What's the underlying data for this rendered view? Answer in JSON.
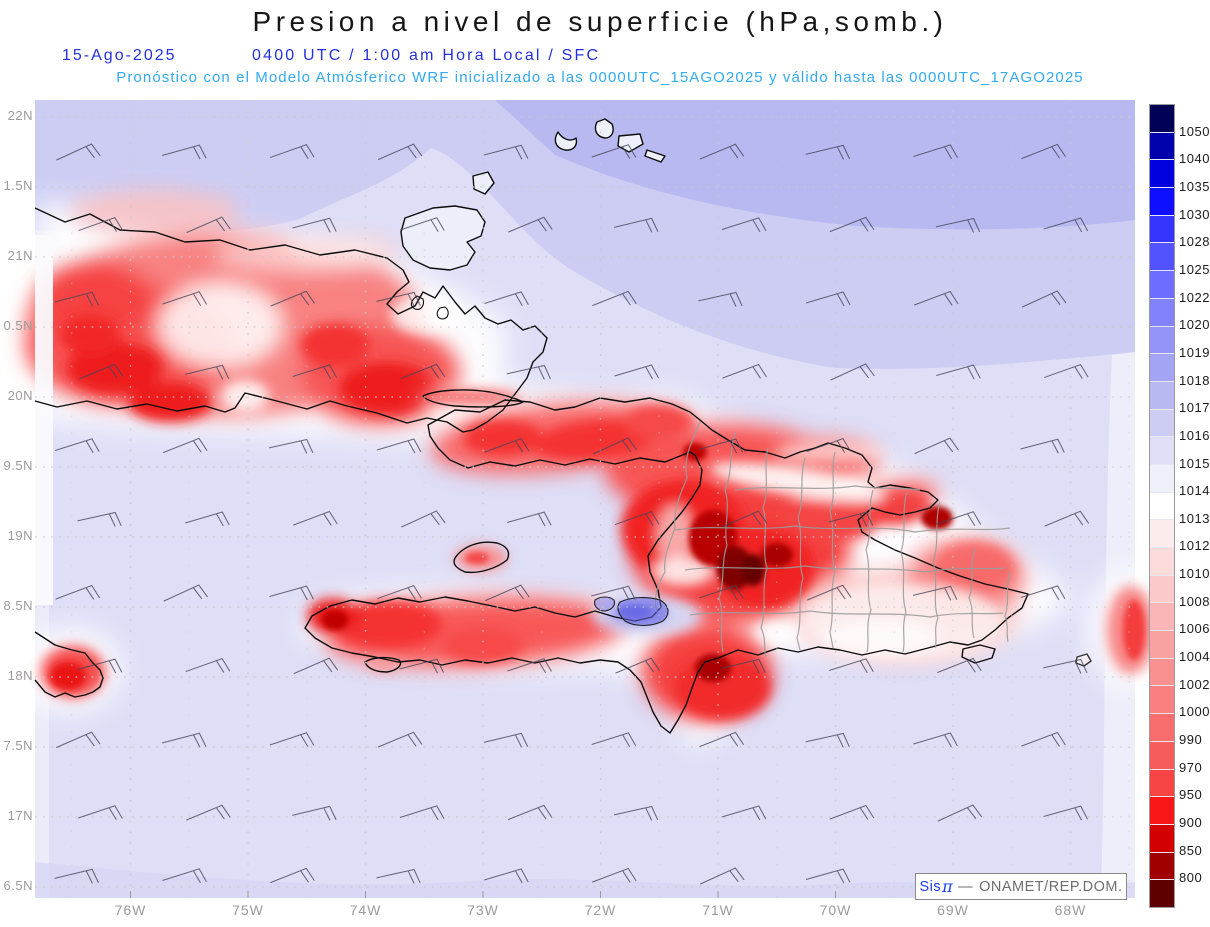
{
  "title": "Presion a nivel de superficie (hPa,somb.)",
  "header": {
    "date": "15-Ago-2025",
    "time_line": "0400 UTC / 1:00 am Hora Local / SFC",
    "forecast_line": "Pronóstico con el Modelo Atmósferico WRF inicializado a las 0000UTC_15AGO2025 y válido hasta las  0000UTC_17AGO2025",
    "date_color": "#2531df",
    "forecast_color": "#32a9f0"
  },
  "map": {
    "lat_labels": [
      "22N",
      "1.5N",
      "21N",
      "0.5N",
      "20N",
      "9.5N",
      "19N",
      "8.5N",
      "18N",
      "7.5N",
      "17N",
      "6.5N"
    ],
    "lon_labels": [
      "76W",
      "75W",
      "74W",
      "73W",
      "72W",
      "71W",
      "70W",
      "69W",
      "68W"
    ],
    "sea_colors": {
      "base": "#dedef7",
      "north_band": "#cdcdf4",
      "far_north_band": "#b9b9f1",
      "east_strip": "#efeffa"
    },
    "land_accent_colors": {
      "low_pressure_red": "#f81616",
      "dark_core": "#660000",
      "valley_white": "#ffffff",
      "lake_blue": "#6666e4"
    },
    "wind_barbs": {
      "glyph": "easterly-wind-barb",
      "rows": 11,
      "cols": 10
    }
  },
  "colorbar": {
    "unit": "hPa",
    "labels": [
      "1050",
      "1040",
      "1035",
      "1030",
      "1028",
      "1025",
      "1022",
      "1020",
      "1019",
      "1018",
      "1017",
      "1016",
      "1015",
      "1014",
      "1013",
      "1012",
      "1010",
      "1008",
      "1006",
      "1004",
      "1002",
      "1000",
      "990",
      "970",
      "950",
      "900",
      "850",
      "800"
    ],
    "colors": [
      "#000057",
      "#0000ad",
      "#0000de",
      "#0f0fff",
      "#3535ff",
      "#5252ff",
      "#6d6dff",
      "#8282fb",
      "#9393f8",
      "#a4a4f5",
      "#b9b9f1",
      "#cdcdf4",
      "#dedef7",
      "#efeffa",
      "#ffffff",
      "#fdecec",
      "#fcdbdb",
      "#fbc9c9",
      "#fab6b6",
      "#f9a2a2",
      "#f99191",
      "#f88080",
      "#f86e6e",
      "#f75c5c",
      "#f84444",
      "#f81616",
      "#d30000",
      "#a00000",
      "#5f0000"
    ]
  },
  "watermark": {
    "sis": "Sis",
    "pi": "π",
    "dash": "—",
    "org": "ONAMET/REP.DOM."
  }
}
